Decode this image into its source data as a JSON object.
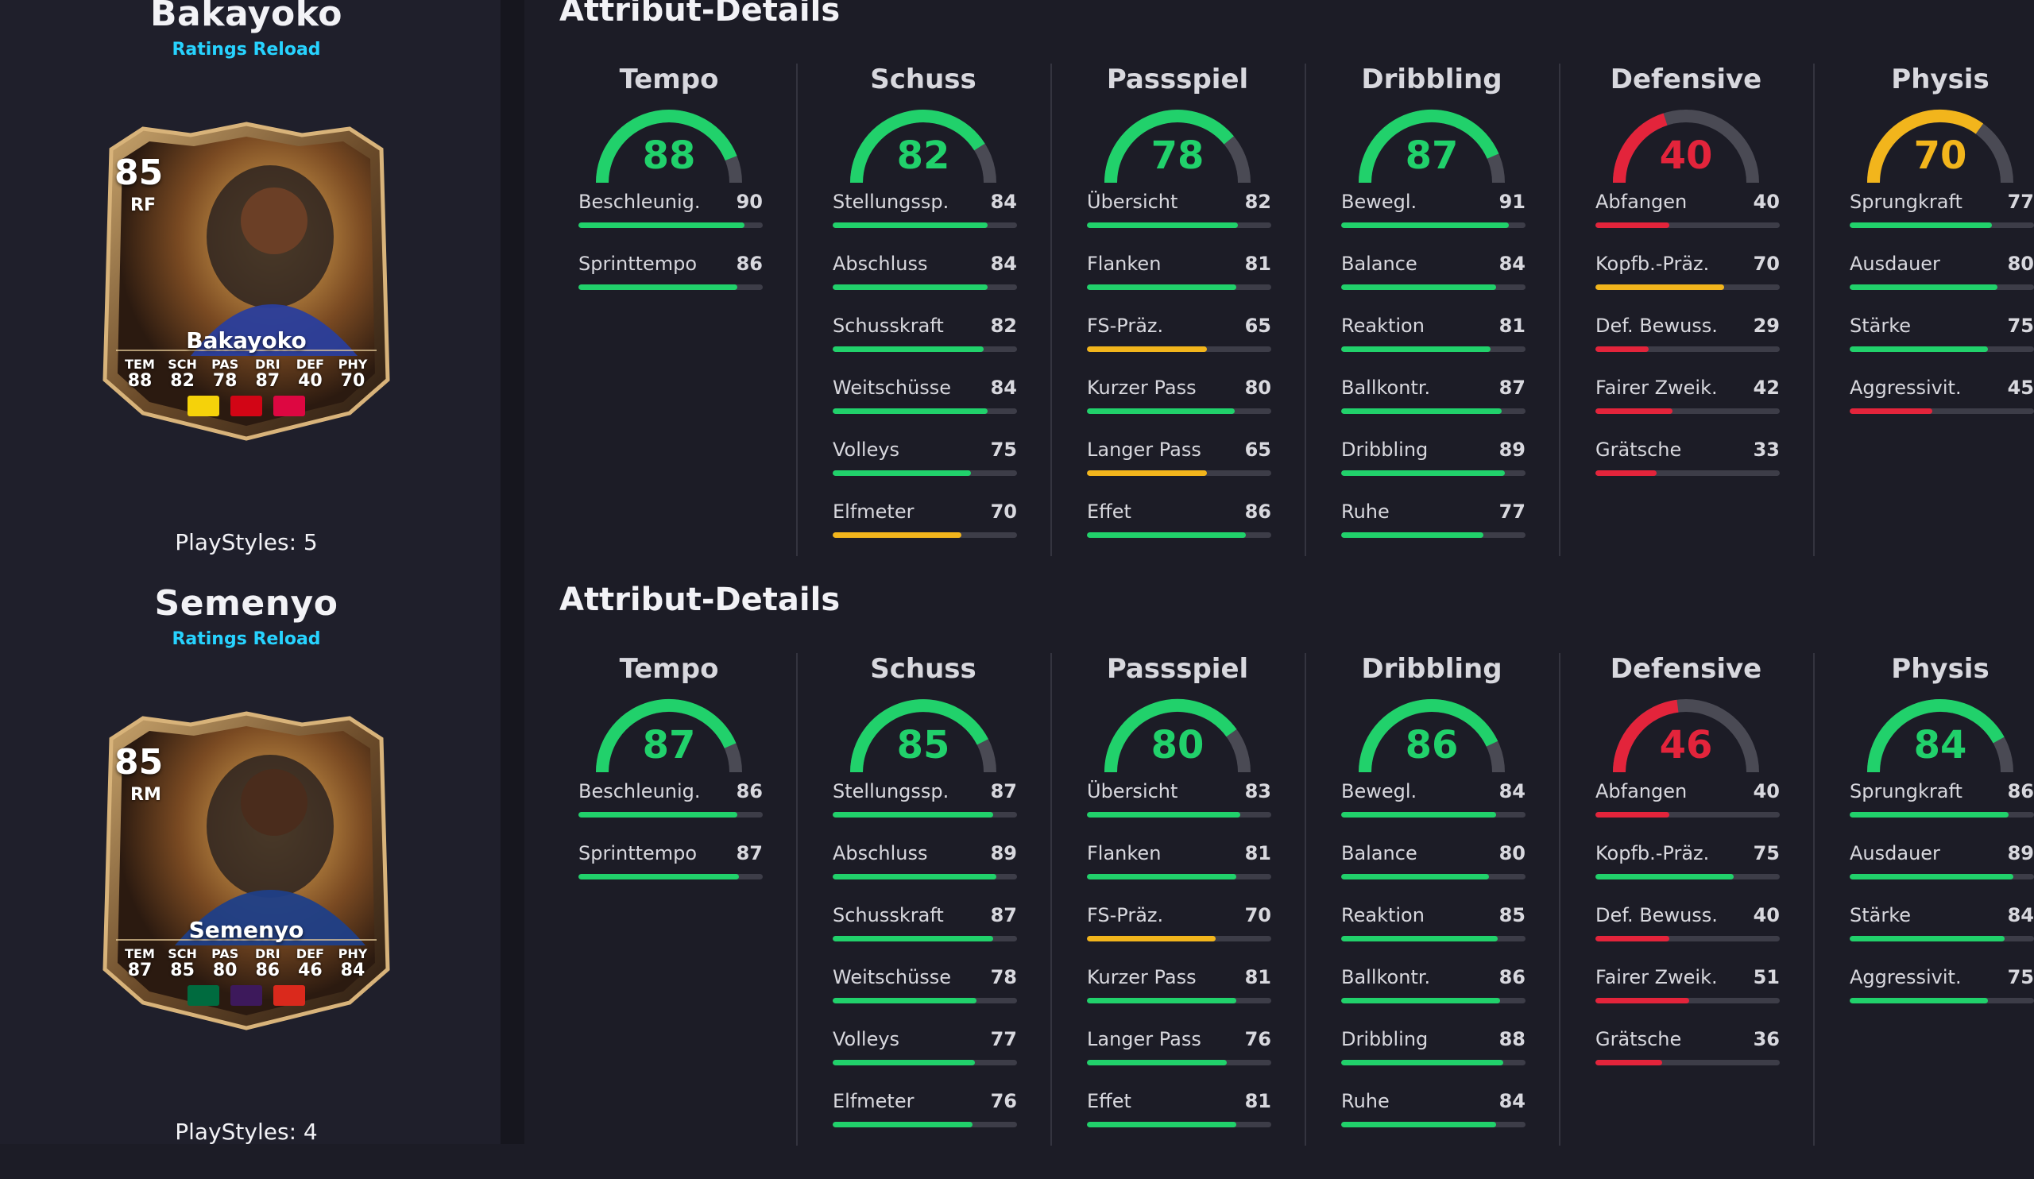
{
  "colors": {
    "green": "#21d16b",
    "yellow": "#f2b51c",
    "red": "#e3243b",
    "track": "#3d3d48"
  },
  "players": [
    {
      "name": "Bakayoko",
      "subtitle": "Ratings Reload",
      "playstyles": "PlayStyles: 5",
      "card": {
        "rating": "85",
        "position": "RF",
        "name": "Bakayoko",
        "stats": [
          {
            "label": "TEM",
            "value": "88"
          },
          {
            "label": "SCH",
            "value": "82"
          },
          {
            "label": "PAS",
            "value": "78"
          },
          {
            "label": "DRI",
            "value": "87"
          },
          {
            "label": "DEF",
            "value": "40"
          },
          {
            "label": "PHY",
            "value": "70"
          }
        ],
        "badges": [
          "belgium-flag-icon",
          "bundesliga-logo-icon",
          "rb-leipzig-crest-icon"
        ],
        "badge_colors": [
          "#f5d20a",
          "#d20515",
          "#dd0741"
        ]
      },
      "section_title": "Attribut-Details",
      "columns": [
        {
          "title": "Tempo",
          "value": 88,
          "attrs": [
            {
              "name": "Beschleunig.",
              "value": 90
            },
            {
              "name": "Sprinttempo",
              "value": 86
            }
          ]
        },
        {
          "title": "Schuss",
          "value": 82,
          "attrs": [
            {
              "name": "Stellungssp.",
              "value": 84
            },
            {
              "name": "Abschluss",
              "value": 84
            },
            {
              "name": "Schusskraft",
              "value": 82
            },
            {
              "name": "Weitschüsse",
              "value": 84
            },
            {
              "name": "Volleys",
              "value": 75
            },
            {
              "name": "Elfmeter",
              "value": 70
            }
          ]
        },
        {
          "title": "Passspiel",
          "value": 78,
          "attrs": [
            {
              "name": "Übersicht",
              "value": 82
            },
            {
              "name": "Flanken",
              "value": 81
            },
            {
              "name": "FS-Präz.",
              "value": 65
            },
            {
              "name": "Kurzer Pass",
              "value": 80
            },
            {
              "name": "Langer Pass",
              "value": 65
            },
            {
              "name": "Effet",
              "value": 86
            }
          ]
        },
        {
          "title": "Dribbling",
          "value": 87,
          "attrs": [
            {
              "name": "Bewegl.",
              "value": 91
            },
            {
              "name": "Balance",
              "value": 84
            },
            {
              "name": "Reaktion",
              "value": 81
            },
            {
              "name": "Ballkontr.",
              "value": 87
            },
            {
              "name": "Dribbling",
              "value": 89
            },
            {
              "name": "Ruhe",
              "value": 77
            }
          ]
        },
        {
          "title": "Defensive",
          "value": 40,
          "attrs": [
            {
              "name": "Abfangen",
              "value": 40
            },
            {
              "name": "Kopfb.-Präz.",
              "value": 70
            },
            {
              "name": "Def. Bewuss.",
              "value": 29
            },
            {
              "name": "Fairer Zweik.",
              "value": 42
            },
            {
              "name": "Grätsche",
              "value": 33
            }
          ]
        },
        {
          "title": "Physis",
          "value": 70,
          "attrs": [
            {
              "name": "Sprungkraft",
              "value": 77
            },
            {
              "name": "Ausdauer",
              "value": 80
            },
            {
              "name": "Stärke",
              "value": 75
            },
            {
              "name": "Aggressivit.",
              "value": 45
            }
          ]
        }
      ]
    },
    {
      "name": "Semenyo",
      "subtitle": "Ratings Reload",
      "playstyles": "PlayStyles: 4",
      "card": {
        "rating": "85",
        "position": "RM",
        "name": "Semenyo",
        "stats": [
          {
            "label": "TEM",
            "value": "87"
          },
          {
            "label": "SCH",
            "value": "85"
          },
          {
            "label": "PAS",
            "value": "80"
          },
          {
            "label": "DRI",
            "value": "86"
          },
          {
            "label": "DEF",
            "value": "46"
          },
          {
            "label": "PHY",
            "value": "84"
          }
        ],
        "badges": [
          "ghana-flag-icon",
          "premier-league-logo-icon",
          "bournemouth-crest-icon"
        ],
        "badge_colors": [
          "#006b3f",
          "#3d195b",
          "#da291c"
        ]
      },
      "section_title": "Attribut-Details",
      "columns": [
        {
          "title": "Tempo",
          "value": 87,
          "attrs": [
            {
              "name": "Beschleunig.",
              "value": 86
            },
            {
              "name": "Sprinttempo",
              "value": 87
            }
          ]
        },
        {
          "title": "Schuss",
          "value": 85,
          "attrs": [
            {
              "name": "Stellungssp.",
              "value": 87
            },
            {
              "name": "Abschluss",
              "value": 89
            },
            {
              "name": "Schusskraft",
              "value": 87
            },
            {
              "name": "Weitschüsse",
              "value": 78
            },
            {
              "name": "Volleys",
              "value": 77
            },
            {
              "name": "Elfmeter",
              "value": 76
            }
          ]
        },
        {
          "title": "Passspiel",
          "value": 80,
          "attrs": [
            {
              "name": "Übersicht",
              "value": 83
            },
            {
              "name": "Flanken",
              "value": 81
            },
            {
              "name": "FS-Präz.",
              "value": 70
            },
            {
              "name": "Kurzer Pass",
              "value": 81
            },
            {
              "name": "Langer Pass",
              "value": 76
            },
            {
              "name": "Effet",
              "value": 81
            }
          ]
        },
        {
          "title": "Dribbling",
          "value": 86,
          "attrs": [
            {
              "name": "Bewegl.",
              "value": 84
            },
            {
              "name": "Balance",
              "value": 80
            },
            {
              "name": "Reaktion",
              "value": 85
            },
            {
              "name": "Ballkontr.",
              "value": 86
            },
            {
              "name": "Dribbling",
              "value": 88
            },
            {
              "name": "Ruhe",
              "value": 84
            }
          ]
        },
        {
          "title": "Defensive",
          "value": 46,
          "attrs": [
            {
              "name": "Abfangen",
              "value": 40
            },
            {
              "name": "Kopfb.-Präz.",
              "value": 75
            },
            {
              "name": "Def. Bewuss.",
              "value": 40
            },
            {
              "name": "Fairer Zweik.",
              "value": 51
            },
            {
              "name": "Grätsche",
              "value": 36
            }
          ]
        },
        {
          "title": "Physis",
          "value": 84,
          "attrs": [
            {
              "name": "Sprungkraft",
              "value": 86
            },
            {
              "name": "Ausdauer",
              "value": 89
            },
            {
              "name": "Stärke",
              "value": 84
            },
            {
              "name": "Aggressivit.",
              "value": 75
            }
          ]
        }
      ]
    }
  ]
}
